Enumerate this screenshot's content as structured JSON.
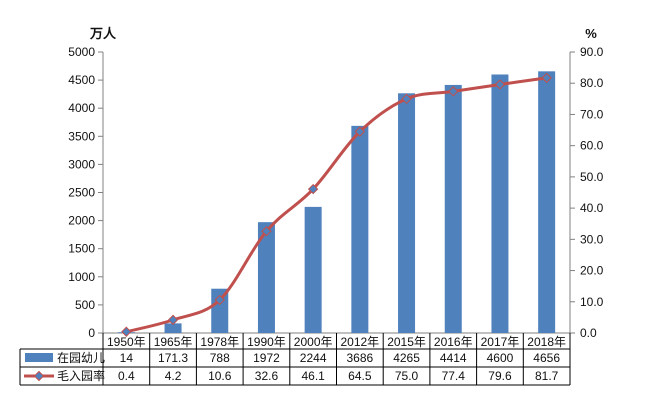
{
  "chart_data": {
    "type": "bar",
    "categories": [
      "1950年",
      "1965年",
      "1978年",
      "1990年",
      "2000年",
      "2012年",
      "2015年",
      "2016年",
      "2017年",
      "2018年"
    ],
    "left_axis_unit": "万人",
    "right_axis_unit": "%",
    "ylim_left": [
      0,
      5000
    ],
    "ylim_right": [
      0,
      90
    ],
    "left_ticks": [
      "0",
      "500",
      "1000",
      "1500",
      "2000",
      "2500",
      "3000",
      "3500",
      "4000",
      "4500",
      "5000"
    ],
    "right_ticks": [
      "0.0",
      "10.0",
      "20.0",
      "30.0",
      "40.0",
      "50.0",
      "60.0",
      "70.0",
      "80.0",
      "90.0"
    ],
    "grid": false,
    "legend": "bottom data table",
    "series": [
      {
        "name": "在园幼儿",
        "type": "bar",
        "axis": "left",
        "color": "#4F81BD",
        "values": [
          14,
          171.3,
          788,
          1972,
          2244,
          3686,
          4265,
          4414,
          4600,
          4656
        ],
        "labels": [
          "14",
          "171.3",
          "788",
          "1972",
          "2244",
          "3686",
          "4265",
          "4414",
          "4600",
          "4656"
        ]
      },
      {
        "name": "毛入园率",
        "type": "line",
        "axis": "right",
        "color": "#C0504D",
        "marker_color": "#4F81BD",
        "values": [
          0.4,
          4.2,
          10.6,
          32.6,
          46.1,
          64.5,
          75.0,
          77.4,
          79.6,
          81.7
        ],
        "labels": [
          "0.4",
          "4.2",
          "10.6",
          "32.6",
          "46.1",
          "64.5",
          "75.0",
          "77.4",
          "79.6",
          "81.7"
        ]
      }
    ]
  }
}
